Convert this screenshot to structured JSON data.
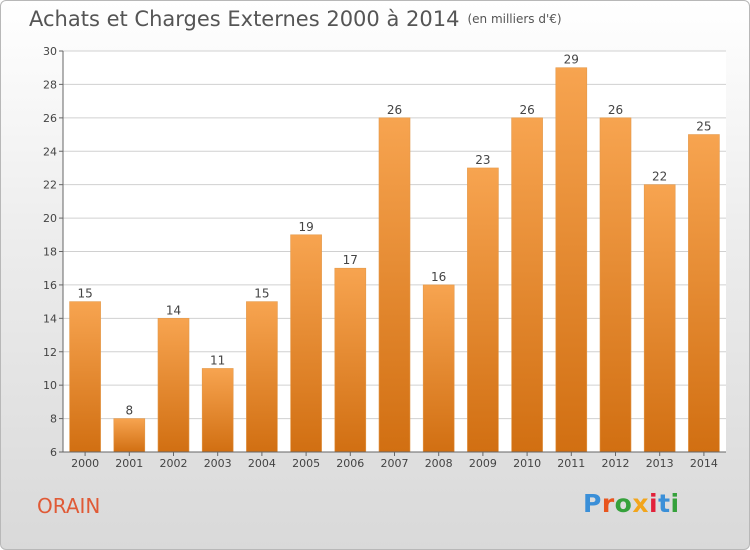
{
  "header": {
    "title": "Achats et Charges Externes 2000 à 2014",
    "subtitle": "(en milliers d'€)"
  },
  "footer": {
    "place": "ORAIN",
    "logo_text": "Proxiti",
    "logo_colors": [
      "#3a8fd8",
      "#e8551e",
      "#35a13b",
      "#f2a51c",
      "#e2213a",
      "#3a8fd8",
      "#35a13b"
    ]
  },
  "chart_data": {
    "type": "bar",
    "categories": [
      "2000",
      "2001",
      "2002",
      "2003",
      "2004",
      "2005",
      "2006",
      "2007",
      "2008",
      "2009",
      "2010",
      "2011",
      "2012",
      "2013",
      "2014"
    ],
    "values": [
      15,
      8,
      14,
      11,
      15,
      19,
      17,
      26,
      16,
      23,
      26,
      29,
      26,
      22,
      25
    ],
    "ylim": [
      6,
      30
    ],
    "yticks": [
      6,
      8,
      10,
      12,
      14,
      16,
      18,
      20,
      22,
      24,
      26,
      28,
      30
    ],
    "grid": true,
    "bar_color_top": "#f7a450",
    "bar_color_bottom": "#d16f12"
  }
}
